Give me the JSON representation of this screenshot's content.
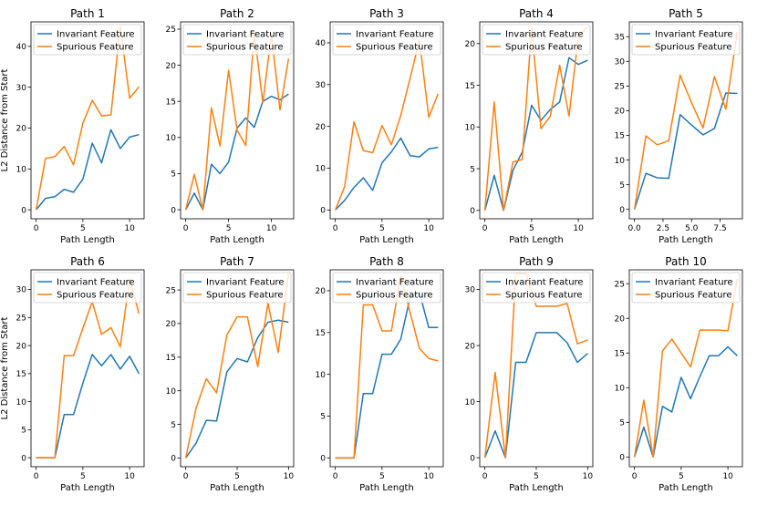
{
  "figure": {
    "xlabel": "Path Length",
    "ylabel": "L2 Distance from Start",
    "colors": {
      "invariant": "#1f77b4",
      "spurious": "#ff7f0e"
    }
  },
  "chart_data": [
    {
      "type": "line",
      "title": "Path 1",
      "xlabel": "Path Length",
      "ylabel": "L2 Distance from Start",
      "xlim": [
        -0.55,
        11.55
      ],
      "ylim": [
        -2.2,
        46
      ],
      "xticks": [
        0,
        5,
        10
      ],
      "yticks": [
        0,
        10,
        20,
        30,
        40
      ],
      "series": [
        {
          "name": "Invariant Feature",
          "x": [
            0,
            1,
            2,
            3,
            4,
            5,
            6,
            7,
            8,
            9,
            10,
            11
          ],
          "values": [
            0,
            2.8,
            3.2,
            5.0,
            4.3,
            7.5,
            16.3,
            11.5,
            19.6,
            15.0,
            17.8,
            18.4
          ]
        },
        {
          "name": "Spurious Feature",
          "x": [
            0,
            1,
            2,
            3,
            4,
            5,
            6,
            7,
            8,
            9,
            10,
            11
          ],
          "values": [
            0,
            12.6,
            13.0,
            15.5,
            11.0,
            21.2,
            26.8,
            23.0,
            23.2,
            45.0,
            27.3,
            30.1
          ]
        }
      ]
    },
    {
      "type": "line",
      "title": "Path 2",
      "xlabel": "Path Length",
      "ylabel": "",
      "xlim": [
        -0.6,
        12.6
      ],
      "ylim": [
        -1.25,
        26
      ],
      "xticks": [
        0,
        5,
        10
      ],
      "yticks": [
        0,
        5,
        10,
        15,
        20,
        25
      ],
      "series": [
        {
          "name": "Invariant Feature",
          "x": [
            0,
            1,
            2,
            3,
            4,
            5,
            6,
            7,
            8,
            9,
            10,
            11,
            12
          ],
          "values": [
            0,
            2.3,
            0,
            6.3,
            5.0,
            6.6,
            11.3,
            12.7,
            11.4,
            15.0,
            15.7,
            15.2,
            16.0
          ]
        },
        {
          "name": "Spurious Feature",
          "x": [
            0,
            1,
            2,
            3,
            4,
            5,
            6,
            7,
            8,
            9,
            10,
            11,
            12
          ],
          "values": [
            0,
            4.9,
            0,
            14.1,
            8.8,
            19.3,
            11.0,
            8.9,
            24.5,
            14.8,
            24.3,
            13.8,
            20.9
          ]
        }
      ]
    },
    {
      "type": "line",
      "title": "Path 3",
      "xlabel": "Path Length",
      "ylabel": "",
      "xlim": [
        -0.55,
        11.55
      ],
      "ylim": [
        -2.1,
        45
      ],
      "xticks": [
        0,
        5,
        10
      ],
      "yticks": [
        0,
        10,
        20,
        30,
        40
      ],
      "series": [
        {
          "name": "Invariant Feature",
          "x": [
            0,
            1,
            2,
            3,
            4,
            5,
            6,
            7,
            8,
            9,
            10,
            11
          ],
          "values": [
            0,
            2.3,
            5.4,
            7.7,
            4.7,
            11.3,
            13.9,
            17.2,
            13.0,
            12.7,
            14.6,
            15.0
          ]
        },
        {
          "name": "Spurious Feature",
          "x": [
            0,
            1,
            2,
            3,
            4,
            5,
            6,
            7,
            8,
            9,
            10,
            11
          ],
          "values": [
            0,
            5.6,
            21.1,
            14.2,
            13.7,
            20.2,
            15.6,
            22.6,
            31.5,
            40.7,
            22.2,
            27.8
          ]
        }
      ]
    },
    {
      "type": "line",
      "title": "Path 4",
      "xlabel": "Path Length",
      "ylabel": "",
      "xlim": [
        -0.55,
        11.55
      ],
      "ylim": [
        -1.0,
        22.6
      ],
      "xticks": [
        0,
        5,
        10
      ],
      "yticks": [
        0,
        5,
        10,
        15,
        20
      ],
      "series": [
        {
          "name": "Invariant Feature",
          "x": [
            0,
            1,
            2,
            3,
            4,
            5,
            6,
            7,
            8,
            9,
            10,
            11
          ],
          "values": [
            0,
            4.2,
            0,
            4.8,
            7.0,
            12.6,
            10.8,
            12.1,
            13.0,
            18.3,
            17.5,
            18.0
          ]
        },
        {
          "name": "Spurious Feature",
          "x": [
            0,
            1,
            2,
            3,
            4,
            5,
            6,
            7,
            8,
            9,
            10,
            11
          ],
          "values": [
            0,
            13.0,
            0,
            5.8,
            6.1,
            21.9,
            9.8,
            11.3,
            17.4,
            11.3,
            20.8,
            22.0
          ]
        }
      ]
    },
    {
      "type": "line",
      "title": "Path 5",
      "xlabel": "Path Length",
      "ylabel": "",
      "xlim": [
        -0.45,
        9.45
      ],
      "ylim": [
        -1.9,
        38
      ],
      "xticks": [
        0,
        2.5,
        5.0,
        7.5
      ],
      "xticklabels": [
        "0.0",
        "2.5",
        "5.0",
        "7.5"
      ],
      "yticks": [
        0,
        5,
        10,
        15,
        20,
        25,
        30,
        35
      ],
      "series": [
        {
          "name": "Invariant Feature",
          "x": [
            0,
            1,
            2,
            3,
            4,
            5,
            6,
            7,
            8,
            9
          ],
          "values": [
            0,
            7.3,
            6.4,
            6.3,
            19.2,
            17.1,
            15.1,
            16.4,
            23.6,
            23.5
          ]
        },
        {
          "name": "Spurious Feature",
          "x": [
            0,
            1,
            2,
            3,
            4,
            5,
            6,
            7,
            8,
            9
          ],
          "values": [
            0,
            14.9,
            13.1,
            13.9,
            27.2,
            21.6,
            16.5,
            26.9,
            20.3,
            36.0
          ]
        }
      ]
    },
    {
      "type": "line",
      "title": "Path 6",
      "xlabel": "Path Length",
      "ylabel": "L2 Distance from Start",
      "xlim": [
        -0.55,
        11.55
      ],
      "ylim": [
        -1.6,
        33.5
      ],
      "xticks": [
        0,
        5,
        10
      ],
      "yticks": [
        0,
        5,
        10,
        15,
        20,
        25,
        30
      ],
      "series": [
        {
          "name": "Invariant Feature",
          "x": [
            0,
            1,
            2,
            3,
            4,
            5,
            6,
            7,
            8,
            9,
            10,
            11
          ],
          "values": [
            0,
            0,
            0,
            7.7,
            7.7,
            13.3,
            18.4,
            16.4,
            18.4,
            15.8,
            18.1,
            15.0
          ]
        },
        {
          "name": "Spurious Feature",
          "x": [
            0,
            1,
            2,
            3,
            4,
            5,
            6,
            7,
            8,
            9,
            10,
            11
          ],
          "values": [
            0,
            0,
            0,
            18.2,
            18.2,
            23.1,
            27.8,
            22.0,
            23.2,
            19.8,
            31.9,
            25.7
          ]
        }
      ]
    },
    {
      "type": "line",
      "title": "Path 7",
      "xlabel": "Path Length",
      "ylabel": "",
      "xlim": [
        -0.5,
        10.5
      ],
      "ylim": [
        -1.3,
        28
      ],
      "xticks": [
        0,
        5,
        10
      ],
      "yticks": [
        0,
        5,
        10,
        15,
        20,
        25
      ],
      "series": [
        {
          "name": "Invariant Feature",
          "x": [
            0,
            1,
            2,
            3,
            4,
            5,
            6,
            7,
            8,
            9,
            10
          ],
          "values": [
            0,
            2.2,
            5.6,
            5.5,
            12.8,
            14.8,
            14.3,
            17.9,
            20.2,
            20.5,
            20.2
          ]
        },
        {
          "name": "Spurious Feature",
          "x": [
            0,
            1,
            2,
            3,
            4,
            5,
            6,
            7,
            8,
            9,
            10
          ],
          "values": [
            0,
            7.4,
            11.8,
            9.7,
            18.3,
            21.0,
            21.0,
            13.6,
            23.0,
            15.7,
            27.5
          ]
        }
      ]
    },
    {
      "type": "line",
      "title": "Path 8",
      "xlabel": "Path Length",
      "ylabel": "",
      "xlim": [
        -0.55,
        11.55
      ],
      "ylim": [
        -1.05,
        22.5
      ],
      "xticks": [
        0,
        5,
        10
      ],
      "yticks": [
        0,
        5,
        10,
        15,
        20
      ],
      "series": [
        {
          "name": "Invariant Feature",
          "x": [
            0,
            1,
            2,
            3,
            4,
            5,
            6,
            7,
            8,
            9,
            10,
            11
          ],
          "values": [
            0,
            0,
            0,
            7.7,
            7.7,
            12.4,
            12.4,
            14.2,
            19.2,
            19.8,
            15.6,
            15.6
          ]
        },
        {
          "name": "Spurious Feature",
          "x": [
            0,
            1,
            2,
            3,
            4,
            5,
            6,
            7,
            8,
            9,
            10,
            11
          ],
          "values": [
            0,
            0,
            0,
            18.3,
            18.3,
            15.2,
            15.2,
            21.8,
            17.4,
            13.1,
            11.9,
            11.6
          ]
        }
      ]
    },
    {
      "type": "line",
      "title": "Path 9",
      "xlabel": "Path Length",
      "ylabel": "",
      "xlim": [
        -0.5,
        10.5
      ],
      "ylim": [
        -1.6,
        33.5
      ],
      "xticks": [
        0,
        5,
        10
      ],
      "yticks": [
        0,
        10,
        20,
        30
      ],
      "series": [
        {
          "name": "Invariant Feature",
          "x": [
            0,
            1,
            2,
            3,
            4,
            5,
            6,
            7,
            8,
            9,
            10
          ],
          "values": [
            0,
            4.8,
            0,
            17.0,
            17.0,
            22.3,
            22.3,
            22.3,
            20.5,
            17.0,
            18.6
          ]
        },
        {
          "name": "Spurious Feature",
          "x": [
            0,
            1,
            2,
            3,
            4,
            5,
            6,
            7,
            8,
            9,
            10
          ],
          "values": [
            0,
            15.2,
            0,
            32.8,
            32.8,
            27.0,
            27.0,
            27.0,
            27.5,
            20.3,
            21.0
          ]
        }
      ]
    },
    {
      "type": "line",
      "title": "Path 10",
      "xlabel": "Path Length",
      "ylabel": "",
      "xlim": [
        -0.55,
        11.55
      ],
      "ylim": [
        -1.4,
        27
      ],
      "xticks": [
        0,
        5,
        10
      ],
      "yticks": [
        0,
        5,
        10,
        15,
        20,
        25
      ],
      "series": [
        {
          "name": "Invariant Feature",
          "x": [
            0,
            1,
            2,
            3,
            4,
            5,
            6,
            7,
            8,
            9,
            10,
            11
          ],
          "values": [
            0,
            4.3,
            0,
            7.3,
            6.5,
            11.5,
            8.4,
            11.6,
            14.6,
            14.6,
            15.9,
            14.6
          ]
        },
        {
          "name": "Spurious Feature",
          "x": [
            0,
            1,
            2,
            3,
            4,
            5,
            6,
            7,
            8,
            9,
            10,
            11
          ],
          "values": [
            0,
            8.2,
            0,
            15.3,
            17.0,
            15.0,
            13.0,
            18.3,
            18.3,
            18.3,
            18.2,
            25.7
          ]
        }
      ]
    }
  ]
}
